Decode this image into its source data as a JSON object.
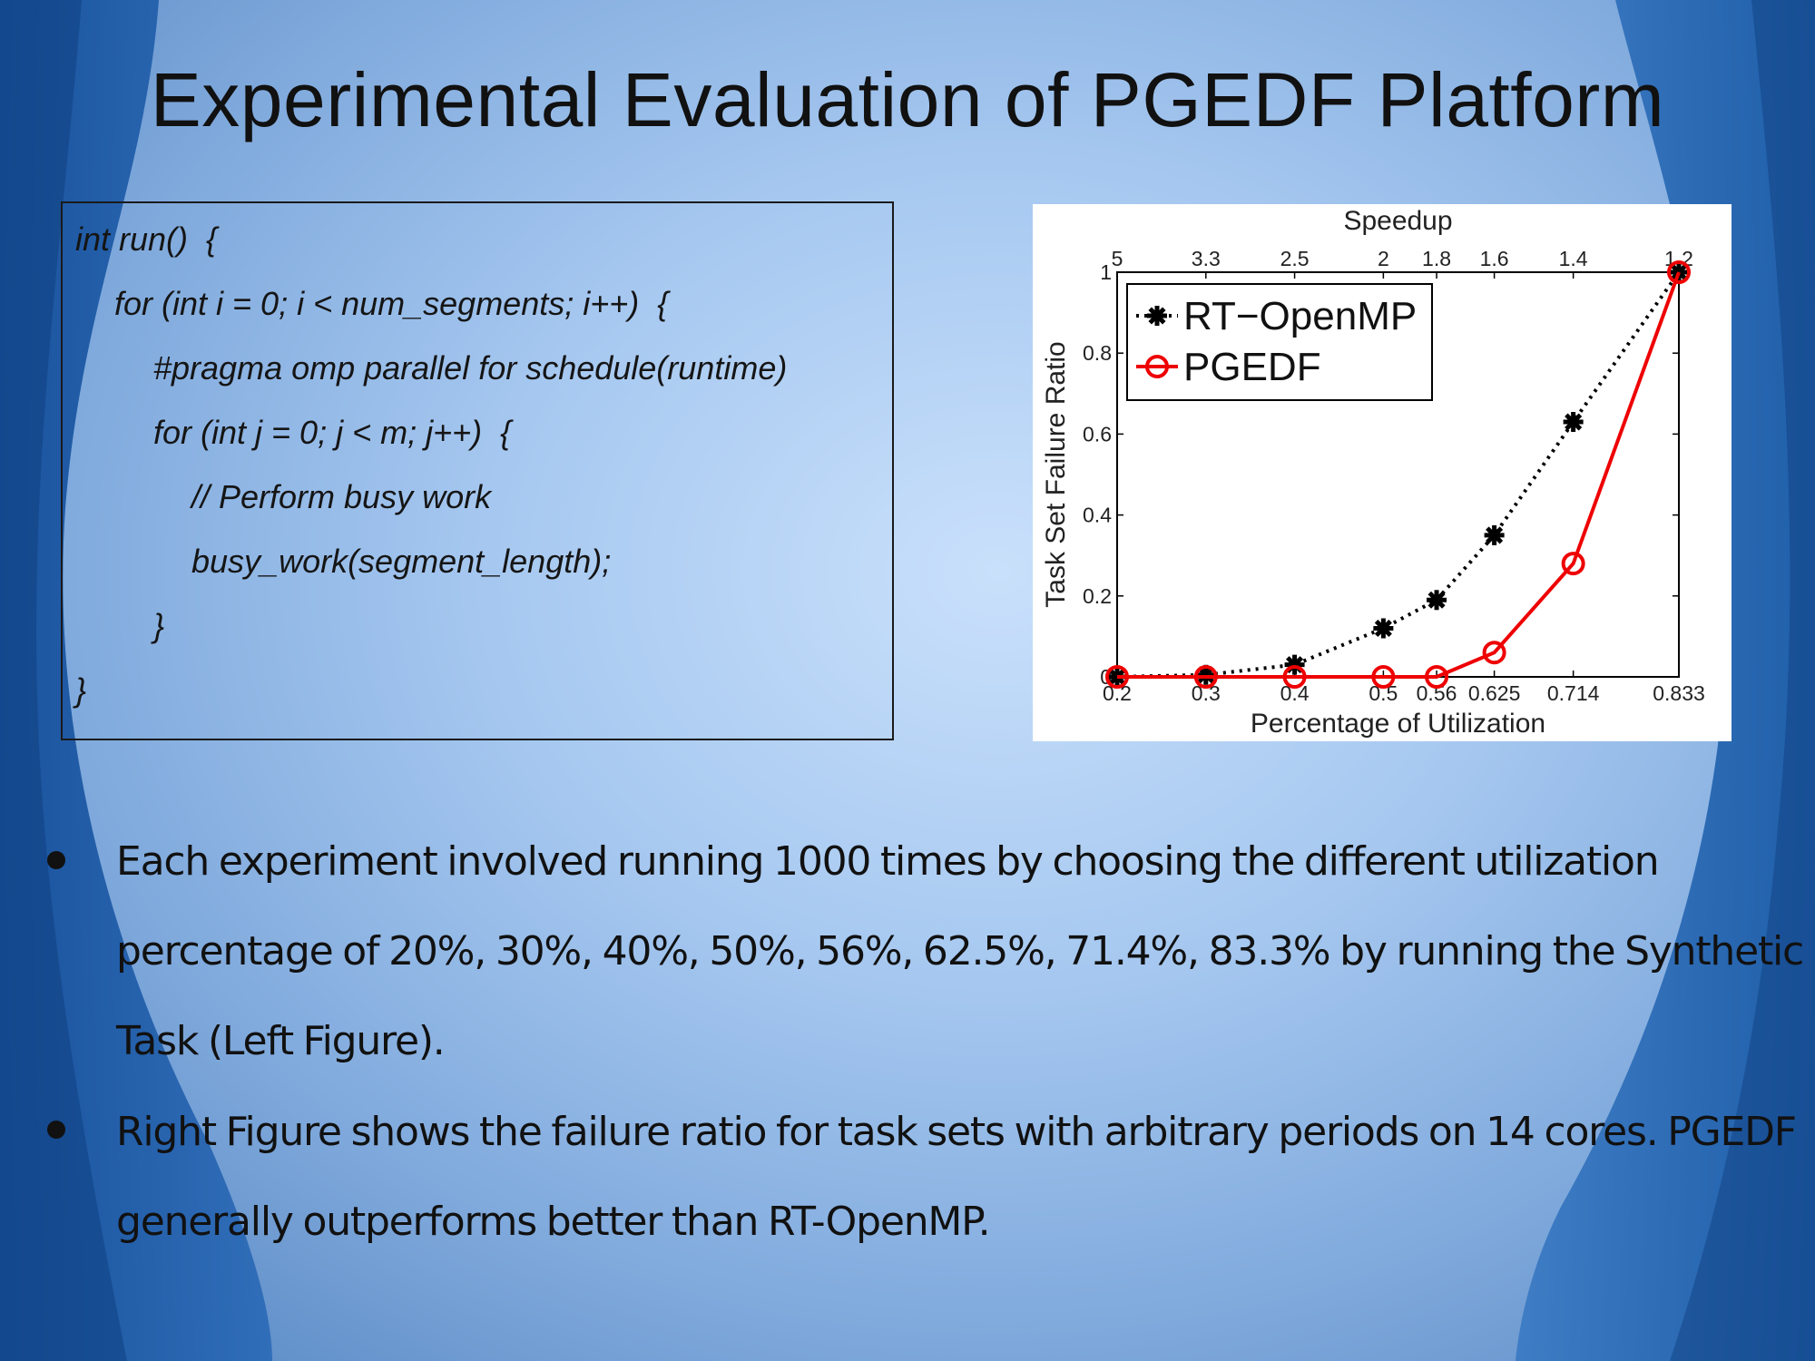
{
  "slide": {
    "title": "Experimental Evaluation of PGEDF Platform"
  },
  "code": {
    "lines": [
      {
        "indent": 0,
        "text": "int run()  {"
      },
      {
        "indent": 1,
        "text": "for (int i = 0; i < num_segments; i++)  {"
      },
      {
        "indent": 2,
        "text": "#pragma omp parallel for schedule(runtime)"
      },
      {
        "indent": 2,
        "text": "for (int j = 0; j < m; j++)  {"
      },
      {
        "indent": 3,
        "text": "// Perform busy work"
      },
      {
        "indent": 3,
        "text": "busy_work(segment_length);"
      },
      {
        "indent": 2,
        "text": "}"
      },
      {
        "indent": 0,
        "text": "}"
      }
    ]
  },
  "chart_data": {
    "type": "line",
    "title": "",
    "xlabel": "Percentage of Utilization",
    "ylabel": "Task Set Failure Ratio",
    "x2label": "Speedup",
    "x": [
      0.2,
      0.3,
      0.4,
      0.5,
      0.56,
      0.625,
      0.714,
      0.833
    ],
    "x_tick_labels": [
      "0.2",
      "0.3",
      "0.4",
      "0.5",
      "0.56",
      "0.625",
      "0.714",
      "0.833"
    ],
    "x2_tick_labels": [
      "5",
      "3.3",
      "2.5",
      "2",
      "1.8",
      "1.6",
      "1.4",
      "1.2"
    ],
    "y_ticks": [
      0,
      0.2,
      0.4,
      0.6,
      0.8,
      1
    ],
    "y_tick_labels": [
      "0",
      "0.2",
      "0.4",
      "0.6",
      "0.8",
      "1"
    ],
    "xlim": [
      0.2,
      0.833
    ],
    "ylim": [
      0,
      1
    ],
    "grid": false,
    "legend_position": "top-left",
    "series": [
      {
        "name": "RT−OpenMP",
        "color": "#000000",
        "line_style": "dotted",
        "marker": "asterisk",
        "values": [
          0.0,
          0.005,
          0.03,
          0.12,
          0.19,
          0.35,
          0.63,
          1.0
        ]
      },
      {
        "name": "PGEDF",
        "color": "#ee0000",
        "line_style": "solid",
        "marker": "circle",
        "values": [
          0.0,
          0.0,
          0.0,
          0.0,
          0.0,
          0.06,
          0.28,
          1.0
        ]
      }
    ]
  },
  "bullets": [
    {
      "text": "Each experiment involved running 1000 times by choosing the different utilization percentage of 20%, 30%, 40%, 50%, 56%, 62.5%, 71.4%, 83.3% by running the Synthetic Task (Left Figure)."
    },
    {
      "text": "Right Figure shows the failure ratio for task sets with arbitrary periods on 14 cores. PGEDF generally outperforms better than RT-OpenMP."
    }
  ]
}
